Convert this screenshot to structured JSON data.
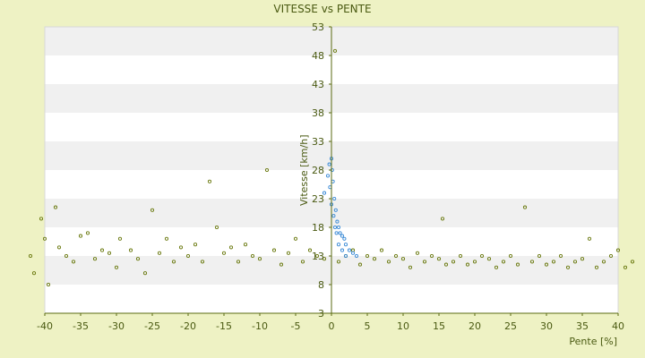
{
  "chart_data": {
    "type": "scatter",
    "title": "VITESSE vs PENTE",
    "xlabel": "Pente [%]",
    "ylabel": "Vitesse [km/h]",
    "xlim": [
      -40,
      40
    ],
    "ylim": [
      3,
      53
    ],
    "x_ticks": [
      "-40",
      "-35",
      "-30",
      "-25",
      "-20",
      "-15",
      "-10",
      "-5",
      "0",
      "5",
      "10",
      "15",
      "20",
      "25",
      "30",
      "35",
      "40"
    ],
    "y_ticks": [
      "3",
      "8",
      "13",
      "18",
      "23",
      "28",
      "33",
      "38",
      "43",
      "48",
      "53"
    ],
    "grid": true,
    "colors": {
      "background": "#eef2c4",
      "band_light": "#ffffff",
      "band_dark": "#f0f0f0",
      "olive_series": "#6b7a10",
      "blue_series": "#3a8ad6",
      "text": "#4a5a12"
    },
    "series": [
      {
        "color": "#6b7a10",
        "points": [
          [
            -42,
            13
          ],
          [
            -41.5,
            10
          ],
          [
            -40.5,
            19.5
          ],
          [
            -40,
            16
          ],
          [
            -39.5,
            8
          ],
          [
            -38.5,
            21.5
          ],
          [
            -38,
            14.5
          ],
          [
            -37,
            13
          ],
          [
            -36,
            12
          ],
          [
            -35,
            16.5
          ],
          [
            -34,
            17
          ],
          [
            -33,
            12.5
          ],
          [
            -32,
            14
          ],
          [
            -31,
            13.5
          ],
          [
            -30,
            11
          ],
          [
            -29.5,
            16
          ],
          [
            -28,
            14
          ],
          [
            -27,
            12.5
          ],
          [
            -26,
            10
          ],
          [
            -25,
            21
          ],
          [
            -24,
            13.5
          ],
          [
            -23,
            16
          ],
          [
            -22,
            12
          ],
          [
            -21,
            14.5
          ],
          [
            -20,
            13
          ],
          [
            -19,
            15
          ],
          [
            -18,
            12
          ],
          [
            -17,
            26
          ],
          [
            -16,
            18
          ],
          [
            -15,
            13.5
          ],
          [
            -14,
            14.5
          ],
          [
            -13,
            12
          ],
          [
            -12,
            15
          ],
          [
            -11,
            13
          ],
          [
            -10,
            12.5
          ],
          [
            -9,
            28
          ],
          [
            -8,
            14
          ],
          [
            -7,
            11.5
          ],
          [
            -6,
            13.5
          ],
          [
            -5,
            16
          ],
          [
            -4,
            12
          ],
          [
            -3,
            14
          ],
          [
            -2,
            13
          ],
          [
            -1,
            12.5
          ],
          [
            0.5,
            48.8
          ],
          [
            1,
            12
          ],
          [
            2,
            13
          ],
          [
            3,
            14
          ],
          [
            4,
            11.5
          ],
          [
            5,
            13
          ],
          [
            6,
            12.5
          ],
          [
            7,
            14
          ],
          [
            8,
            12
          ],
          [
            9,
            13
          ],
          [
            10,
            12.5
          ],
          [
            11,
            11
          ],
          [
            12,
            13.5
          ],
          [
            13,
            12
          ],
          [
            14,
            13
          ],
          [
            15,
            12.5
          ],
          [
            15.5,
            19.5
          ],
          [
            16,
            11.5
          ],
          [
            17,
            12
          ],
          [
            18,
            13
          ],
          [
            19,
            11.5
          ],
          [
            20,
            12
          ],
          [
            21,
            13
          ],
          [
            22,
            12.5
          ],
          [
            23,
            11
          ],
          [
            24,
            12
          ],
          [
            25,
            13
          ],
          [
            26,
            11.5
          ],
          [
            27,
            21.5
          ],
          [
            28,
            12
          ],
          [
            29,
            13
          ],
          [
            30,
            11.5
          ],
          [
            31,
            12
          ],
          [
            32,
            13
          ],
          [
            33,
            11
          ],
          [
            34,
            12
          ],
          [
            35,
            12.5
          ],
          [
            36,
            16
          ],
          [
            37,
            11
          ],
          [
            38,
            12
          ],
          [
            39,
            13
          ],
          [
            40,
            14
          ],
          [
            41,
            11
          ],
          [
            42,
            12
          ]
        ]
      },
      {
        "color": "#3a8ad6",
        "points": [
          [
            -1,
            24
          ],
          [
            -0.5,
            27
          ],
          [
            -0.3,
            29
          ],
          [
            0,
            30
          ],
          [
            0.2,
            26
          ],
          [
            0.4,
            23
          ],
          [
            0.6,
            21
          ],
          [
            0.8,
            19
          ],
          [
            1,
            18
          ],
          [
            1.2,
            17
          ],
          [
            1.5,
            16.5
          ],
          [
            1.8,
            16
          ],
          [
            2,
            15
          ],
          [
            2.5,
            14
          ],
          [
            3,
            13.5
          ],
          [
            3.5,
            13
          ],
          [
            0,
            22
          ],
          [
            0.3,
            20
          ],
          [
            0.5,
            18
          ],
          [
            -0.2,
            25
          ],
          [
            0.1,
            28
          ],
          [
            0.7,
            17
          ],
          [
            1,
            15
          ],
          [
            1.5,
            14
          ],
          [
            2,
            13
          ]
        ]
      }
    ]
  }
}
